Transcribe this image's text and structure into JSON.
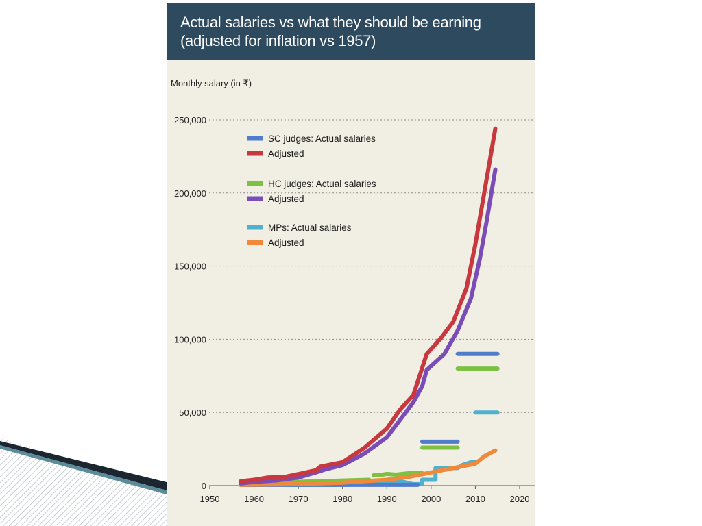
{
  "header": {
    "title_line1": "Actual salaries vs what they should be earning",
    "title_line2": "(adjusted for inflation vs 1957)"
  },
  "chart_data": {
    "type": "line",
    "title": "Actual salaries vs what they should be earning (adjusted for inflation vs 1957)",
    "ylabel": "Monthly salary (in ₹)",
    "xlabel": "",
    "xlim": [
      1950,
      2020
    ],
    "ylim": [
      0,
      250000
    ],
    "x_ticks": [
      1950,
      1960,
      1970,
      1980,
      1990,
      2000,
      2010,
      2020
    ],
    "y_ticks": [
      0,
      50000,
      100000,
      150000,
      200000,
      250000
    ],
    "y_tick_labels": [
      "0",
      "50,000",
      "100,000",
      "150,000",
      "200,000",
      "250,000"
    ],
    "grid": "horizontal-dotted",
    "legend_placement": "top-left",
    "series": [
      {
        "name": "SC judges: Actual salaries",
        "color": "#4f7ccb",
        "style": "step",
        "segments": [
          [
            [
              1957,
              500
            ],
            [
              1997,
              500
            ]
          ],
          [
            [
              1998,
              30000
            ],
            [
              2006,
              30000
            ]
          ],
          [
            [
              2006,
              90000
            ],
            [
              2015,
              90000
            ]
          ]
        ]
      },
      {
        "name": "Adjusted",
        "color": "#c8383f",
        "style": "line",
        "points": [
          [
            1957,
            3000
          ],
          [
            1960,
            4000
          ],
          [
            1963,
            5500
          ],
          [
            1967,
            6000
          ],
          [
            1971,
            8500
          ],
          [
            1974,
            10500
          ],
          [
            1975,
            13000
          ],
          [
            1980,
            16000
          ],
          [
            1985,
            26000
          ],
          [
            1990,
            39000
          ],
          [
            1993,
            52000
          ],
          [
            1996,
            62000
          ],
          [
            1999,
            90000
          ],
          [
            2002,
            100000
          ],
          [
            2005,
            112000
          ],
          [
            2008,
            135000
          ],
          [
            2010,
            165000
          ],
          [
            2012,
            200000
          ],
          [
            2014.5,
            244000
          ]
        ]
      },
      {
        "name": "HC judges: Actual salaries",
        "color": "#7ec142",
        "style": "step",
        "segments": [
          [
            [
              1957,
              1500
            ],
            [
              1986,
              4000
            ]
          ],
          [
            [
              1987,
              7000
            ],
            [
              1989,
              7500
            ],
            [
              1990,
              8000
            ],
            [
              1992,
              7500
            ],
            [
              1995,
              8500
            ],
            [
              1998,
              8500
            ]
          ],
          [
            [
              1998,
              26000
            ],
            [
              2006,
              26000
            ]
          ],
          [
            [
              2006,
              80000
            ],
            [
              2015,
              80000
            ]
          ]
        ]
      },
      {
        "name": "Adjusted",
        "color": "#7a4cb7",
        "style": "line",
        "points": [
          [
            1957,
            1500
          ],
          [
            1960,
            2500
          ],
          [
            1965,
            3500
          ],
          [
            1970,
            5500
          ],
          [
            1974,
            9000
          ],
          [
            1976,
            11000
          ],
          [
            1980,
            14000
          ],
          [
            1985,
            22000
          ],
          [
            1990,
            33000
          ],
          [
            1993,
            45000
          ],
          [
            1996,
            57000
          ],
          [
            1998,
            68000
          ],
          [
            1999,
            79000
          ],
          [
            2003,
            90000
          ],
          [
            2006,
            106000
          ],
          [
            2009,
            128000
          ],
          [
            2011,
            155000
          ],
          [
            2012.5,
            180000
          ],
          [
            2014.5,
            216000
          ]
        ]
      },
      {
        "name": "MPs: Actual salaries",
        "color": "#4fb0cf",
        "style": "step",
        "segments": [
          [
            [
              1957,
              500
            ],
            [
              1980,
              500
            ],
            [
              1985,
              1000
            ],
            [
              1993,
              3000
            ],
            [
              1996,
              1000
            ],
            [
              1998,
              1000
            ],
            [
              1998,
              4000
            ],
            [
              2001,
              4000
            ],
            [
              2001,
              12000
            ],
            [
              2006,
              12000
            ],
            [
              2007,
              14000
            ],
            [
              2009,
              16000
            ],
            [
              2010,
              16000
            ]
          ],
          [
            [
              2010,
              50000
            ],
            [
              2015,
              50000
            ]
          ]
        ]
      },
      {
        "name": "Adjusted",
        "color": "#f0893a",
        "style": "line",
        "points": [
          [
            1957,
            500
          ],
          [
            1970,
            1000
          ],
          [
            1980,
            2000
          ],
          [
            1985,
            3000
          ],
          [
            1990,
            4000
          ],
          [
            1995,
            6000
          ],
          [
            2000,
            9000
          ],
          [
            2005,
            12000
          ],
          [
            2010,
            15000
          ],
          [
            2012,
            20000
          ],
          [
            2014.5,
            24000
          ]
        ]
      }
    ]
  }
}
